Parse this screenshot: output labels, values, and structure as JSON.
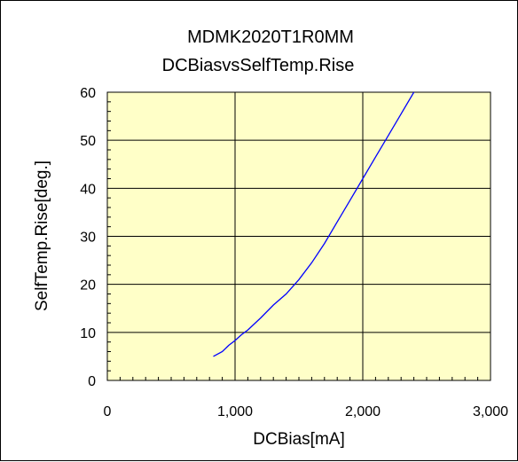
{
  "chart_data": {
    "type": "line",
    "title": "MDMK2020T1R0MM",
    "subtitle": "DCBiasvsSelfTemp.Rise",
    "xlabel": "DCBias[mA]",
    "ylabel": "SelfTemp.Rise[deg.]",
    "xlim": [
      0,
      3000
    ],
    "ylim": [
      0,
      60
    ],
    "x_ticks": [
      0,
      1000,
      2000,
      3000
    ],
    "x_tick_labels": [
      "0",
      "1,000",
      "2,000",
      "3,000"
    ],
    "y_ticks": [
      0,
      10,
      20,
      30,
      40,
      50,
      60
    ],
    "y_tick_labels": [
      "0",
      "10",
      "20",
      "30",
      "40",
      "50",
      "60"
    ],
    "grid": true,
    "minor_ticks": true,
    "legend": "none",
    "plot_background": "#FFFFC8",
    "line_color": "#0000FF",
    "series": [
      {
        "x": [
          830,
          900,
          950,
          1000,
          1050,
          1100,
          1200,
          1300,
          1400,
          1500,
          1600,
          1700,
          1800,
          1900,
          2000,
          2100,
          2200,
          2300,
          2400,
          2440
        ],
        "y": [
          5.0,
          6.0,
          7.3,
          8.3,
          9.5,
          10.5,
          13.0,
          15.7,
          18.0,
          21.0,
          24.5,
          28.5,
          33.0,
          37.5,
          42.0,
          46.5,
          51.0,
          55.5,
          60.0,
          61.5
        ]
      }
    ]
  }
}
